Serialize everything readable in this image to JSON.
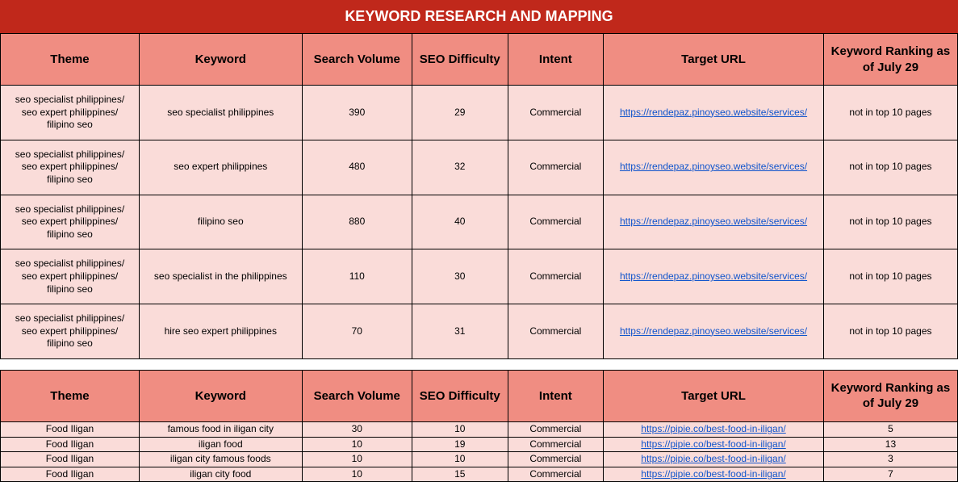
{
  "title": "KEYWORD RESEARCH AND MAPPING",
  "colors": {
    "title_bg": "#c0281b",
    "title_text": "#ffffff",
    "header_bg": "#f08d82",
    "header_text": "#000000",
    "row_bg": "#fadcd9",
    "link_color": "#1155cc",
    "border": "#000000"
  },
  "columns": [
    "Theme",
    "Keyword",
    "Search Volume",
    "SEO Difficulty",
    "Intent",
    "Target URL",
    "Keyword Ranking as of July 29"
  ],
  "section1": {
    "theme": "seo specialist philippines/\nseo expert philippines/\nfilipino seo",
    "rows": [
      {
        "keyword": "seo specialist philippines",
        "volume": "390",
        "difficulty": "29",
        "intent": "Commercial",
        "url": "https://rendepaz.pinoyseo.website/services/",
        "ranking": "not in top 10 pages"
      },
      {
        "keyword": "seo expert philippines",
        "volume": "480",
        "difficulty": "32",
        "intent": "Commercial",
        "url": "https://rendepaz.pinoyseo.website/services/",
        "ranking": "not in top 10 pages"
      },
      {
        "keyword": "filipino seo",
        "volume": "880",
        "difficulty": "40",
        "intent": "Commercial",
        "url": "https://rendepaz.pinoyseo.website/services/",
        "ranking": "not in top 10 pages"
      },
      {
        "keyword": "seo specialist in the philippines",
        "volume": "110",
        "difficulty": "30",
        "intent": "Commercial",
        "url": "https://rendepaz.pinoyseo.website/services/",
        "ranking": "not in top 10 pages"
      },
      {
        "keyword": "hire seo expert philippines",
        "volume": "70",
        "difficulty": "31",
        "intent": "Commercial",
        "url": "https://rendepaz.pinoyseo.website/services/",
        "ranking": "not in top 10 pages"
      }
    ]
  },
  "section2": {
    "theme": "Food Iligan",
    "rows": [
      {
        "keyword": "famous food in iligan city",
        "volume": "30",
        "difficulty": "10",
        "intent": "Commercial",
        "url": "https://pipie.co/best-food-in-iligan/",
        "ranking": "5"
      },
      {
        "keyword": "iligan food",
        "volume": "10",
        "difficulty": "19",
        "intent": "Commercial",
        "url": "https://pipie.co/best-food-in-iligan/",
        "ranking": "13"
      },
      {
        "keyword": "iligan city famous foods",
        "volume": "10",
        "difficulty": "10",
        "intent": "Commercial",
        "url": "https://pipie.co/best-food-in-iligan/",
        "ranking": "3"
      },
      {
        "keyword": "iligan city food",
        "volume": "10",
        "difficulty": "15",
        "intent": "Commercial",
        "url": "https://pipie.co/best-food-in-iligan/",
        "ranking": "7"
      }
    ]
  }
}
